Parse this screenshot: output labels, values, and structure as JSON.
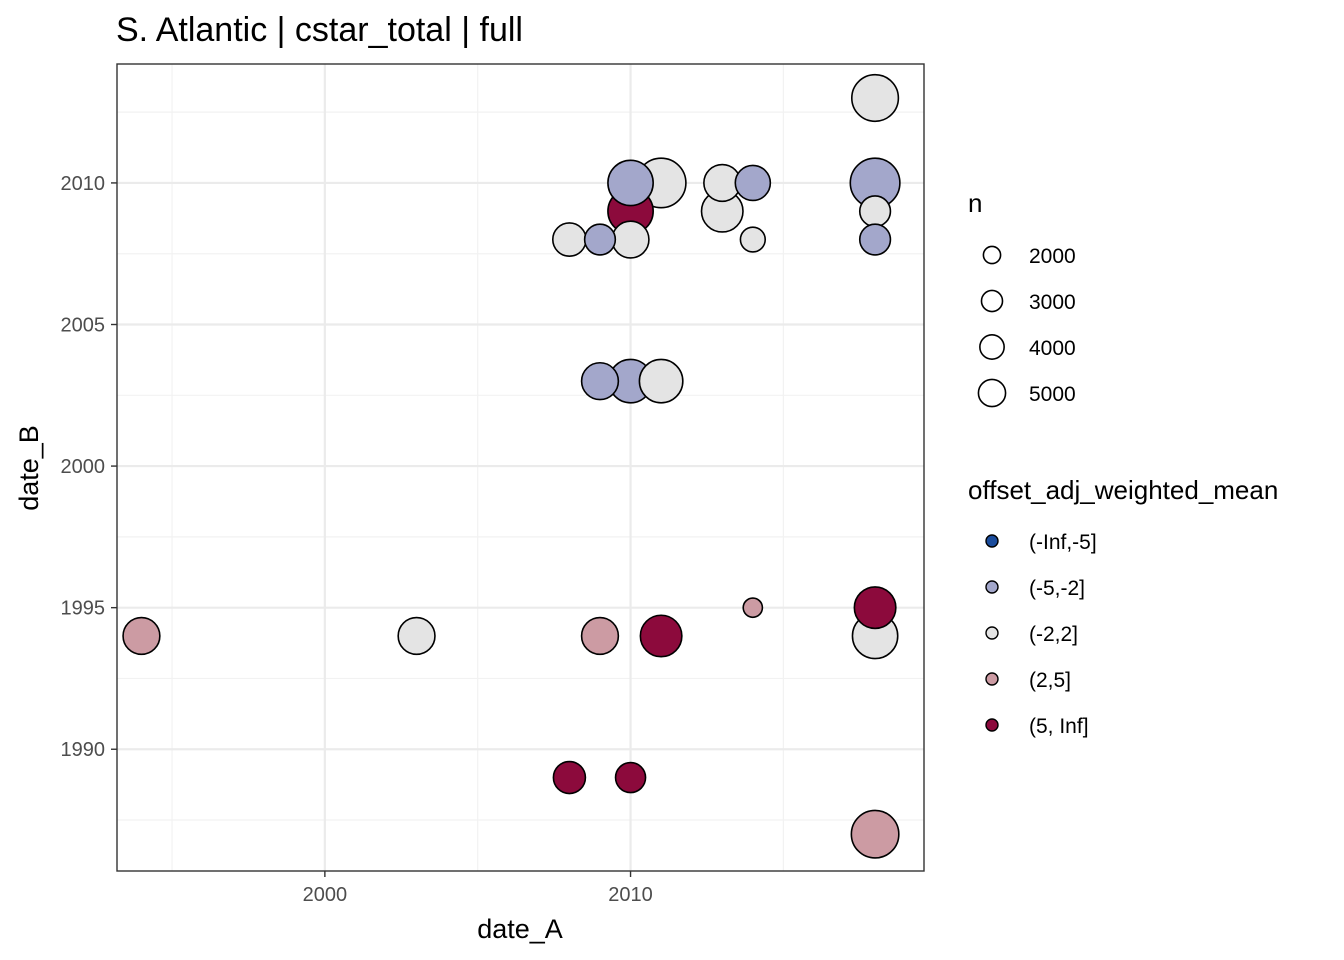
{
  "chart_data": {
    "type": "scatter",
    "title": "S. Atlantic | cstar_total | full",
    "xlabel": "date_A",
    "ylabel": "date_B",
    "xlim": [
      1993.2,
      2019.6
    ],
    "ylim": [
      1985.7,
      2014.2
    ],
    "x_ticks": [
      2000,
      2010
    ],
    "y_ticks": [
      1990,
      1995,
      2000,
      2005,
      2010
    ],
    "grid": true,
    "size_legend": {
      "title": "n",
      "entries": [
        {
          "label": "2000",
          "value": 2000
        },
        {
          "label": "3000",
          "value": 3000
        },
        {
          "label": "4000",
          "value": 4000
        },
        {
          "label": "5000",
          "value": 5000
        }
      ]
    },
    "color_legend": {
      "title": "offset_adj_weighted_mean",
      "entries": [
        {
          "label": "(-Inf,-5]",
          "color": "#1a4c9c"
        },
        {
          "label": "(-5,-2]",
          "color": "#a3a7cb"
        },
        {
          "label": "(-2,2]",
          "color": "#e4e4e4"
        },
        {
          "label": "(2,5]",
          "color": "#cc9ba3"
        },
        {
          "label": "(5, Inf]",
          "color": "#8c0a3c"
        }
      ]
    },
    "points": [
      {
        "x": 1994,
        "y": 1994,
        "n": 3300,
        "bin": "(2,5]"
      },
      {
        "x": 2003,
        "y": 1994,
        "n": 3300,
        "bin": "(-2,2]"
      },
      {
        "x": 2009,
        "y": 1994,
        "n": 3300,
        "bin": "(2,5]"
      },
      {
        "x": 2011,
        "y": 1994,
        "n": 4200,
        "bin": "(5, Inf]"
      },
      {
        "x": 2018,
        "y": 1994,
        "n": 5000,
        "bin": "(-2,2]"
      },
      {
        "x": 2018,
        "y": 1995,
        "n": 4200,
        "bin": "(5, Inf]"
      },
      {
        "x": 2014,
        "y": 1995,
        "n": 900,
        "bin": "(2,5]"
      },
      {
        "x": 2008,
        "y": 1989,
        "n": 2500,
        "bin": "(5, Inf]"
      },
      {
        "x": 2010,
        "y": 1989,
        "n": 2200,
        "bin": "(5, Inf]"
      },
      {
        "x": 2018,
        "y": 1987,
        "n": 5500,
        "bin": "(2,5]"
      },
      {
        "x": 2009,
        "y": 2003,
        "n": 3300,
        "bin": "(-5,-2]"
      },
      {
        "x": 2010,
        "y": 2003,
        "n": 4600,
        "bin": "(-5,-2]"
      },
      {
        "x": 2011,
        "y": 2003,
        "n": 4600,
        "bin": "(-2,2]"
      },
      {
        "x": 2008,
        "y": 2008,
        "n": 2700,
        "bin": "(-2,2]"
      },
      {
        "x": 2009,
        "y": 2008,
        "n": 2300,
        "bin": "(-5,-2]"
      },
      {
        "x": 2010,
        "y": 2008,
        "n": 3300,
        "bin": "(-2,2]"
      },
      {
        "x": 2010,
        "y": 2009,
        "n": 5000,
        "bin": "(5, Inf]"
      },
      {
        "x": 2010,
        "y": 2010,
        "n": 5000,
        "bin": "(-5,-2]"
      },
      {
        "x": 2011,
        "y": 2010,
        "n": 6000,
        "bin": "(-2,2]"
      },
      {
        "x": 2013,
        "y": 2010,
        "n": 3300,
        "bin": "(-2,2]"
      },
      {
        "x": 2014,
        "y": 2010,
        "n": 3000,
        "bin": "(-5,-2]"
      },
      {
        "x": 2013,
        "y": 2009,
        "n": 4200,
        "bin": "(-2,2]"
      },
      {
        "x": 2014,
        "y": 2008,
        "n": 1500,
        "bin": "(-2,2]"
      },
      {
        "x": 2018,
        "y": 2013,
        "n": 5300,
        "bin": "(-2,2]"
      },
      {
        "x": 2018,
        "y": 2010,
        "n": 6000,
        "bin": "(-5,-2]"
      },
      {
        "x": 2018,
        "y": 2009,
        "n": 2300,
        "bin": "(-2,2]"
      },
      {
        "x": 2018,
        "y": 2008,
        "n": 2300,
        "bin": "(-5,-2]"
      }
    ]
  }
}
